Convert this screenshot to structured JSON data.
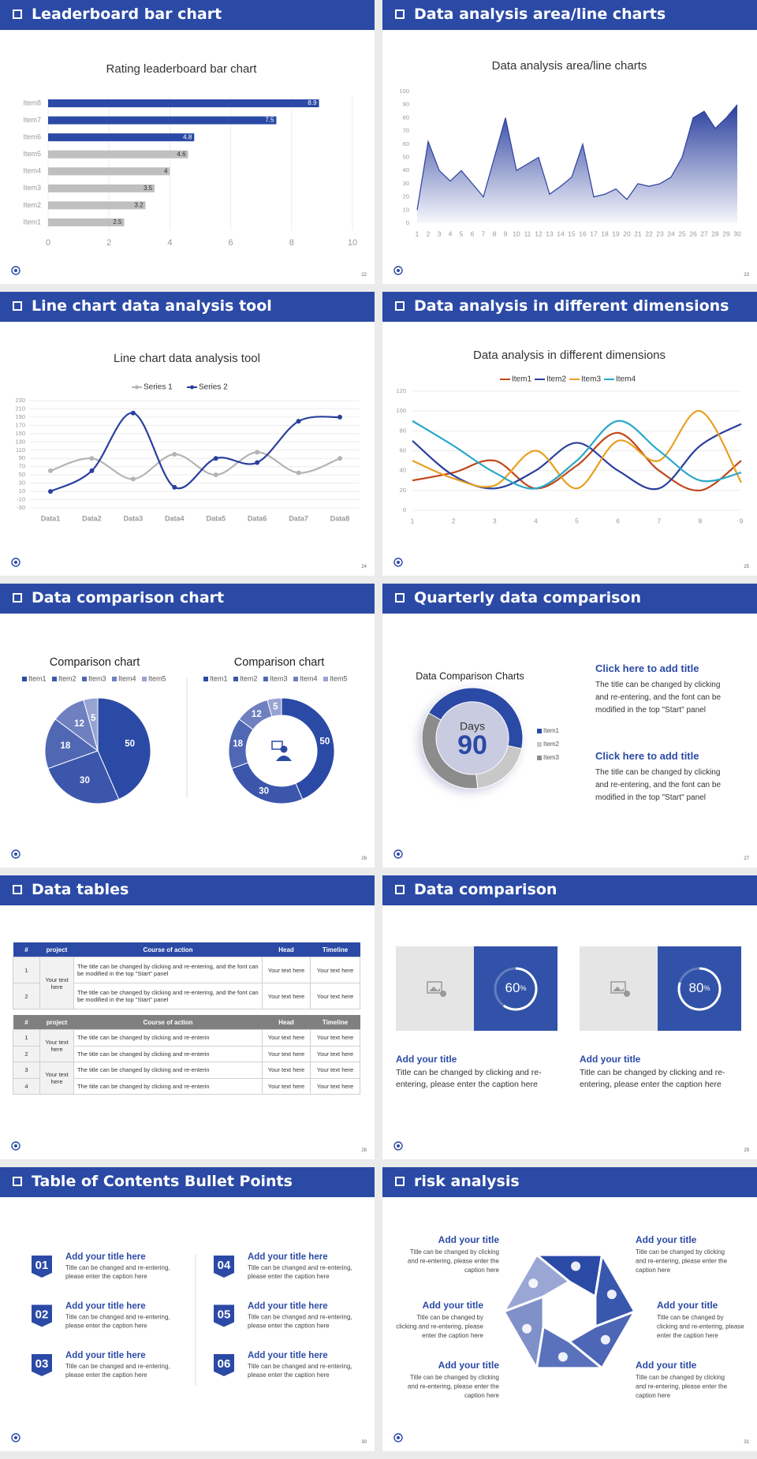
{
  "slides": [
    {
      "title": "Leaderboard bar chart",
      "page": 22
    },
    {
      "title": "Data analysis area/line charts",
      "page": 23
    },
    {
      "title": "Line chart data analysis tool",
      "page": 24
    },
    {
      "title": "Data analysis in different dimensions",
      "page": 25
    },
    {
      "title": "Data comparison chart",
      "page": 26
    },
    {
      "title": "Quarterly data comparison",
      "page": 27
    },
    {
      "title": "Data tables",
      "page": 28
    },
    {
      "title": "Data comparison",
      "page": 29
    },
    {
      "title": "Table of Contents Bullet Points",
      "page": 30
    },
    {
      "title": "risk analysis",
      "page": 31
    }
  ],
  "chart_data": [
    {
      "type": "bar",
      "title": "Rating leaderboard bar chart",
      "categories": [
        "Item1",
        "Item2",
        "Item3",
        "Item4",
        "Item5",
        "Item6",
        "Item7",
        "Item8"
      ],
      "values": [
        2.5,
        3.2,
        3.5,
        4,
        4.6,
        4.8,
        7.5,
        8.9
      ],
      "colors": [
        "#bfbfbf",
        "#bfbfbf",
        "#bfbfbf",
        "#bfbfbf",
        "#bfbfbf",
        "#2b4aa6",
        "#2b4aa6",
        "#2b4aa6"
      ],
      "xlim": [
        0,
        10
      ],
      "xticks": [
        0,
        2,
        4,
        6,
        8,
        10
      ],
      "grid": true
    },
    {
      "type": "area",
      "title": "Data analysis area/line charts",
      "categories": [
        "1",
        "2",
        "3",
        "4",
        "5",
        "6",
        "7",
        "8",
        "9",
        "10",
        "11",
        "12",
        "13",
        "14",
        "15",
        "16",
        "17",
        "18",
        "19",
        "20",
        "21",
        "22",
        "23",
        "24",
        "25",
        "26",
        "27",
        "28",
        "29",
        "30"
      ],
      "values": [
        10,
        62,
        40,
        32,
        40,
        30,
        20,
        50,
        80,
        40,
        45,
        50,
        22,
        28,
        35,
        60,
        20,
        22,
        26,
        18,
        30,
        28,
        30,
        35,
        50,
        80,
        85,
        72,
        80,
        90
      ],
      "color": "#2a3f9e",
      "ylim": [
        0,
        100
      ],
      "yticks": [
        0,
        10,
        20,
        30,
        40,
        50,
        60,
        70,
        80,
        90,
        100
      ]
    },
    {
      "type": "line",
      "title": "Line chart data analysis tool",
      "categories": [
        "Data1",
        "Data2",
        "Data3",
        "Data4",
        "Data5",
        "Data6",
        "Data7",
        "Data8"
      ],
      "series": [
        {
          "name": "Series 1",
          "color": "#b4b4b4",
          "values": [
            60,
            90,
            40,
            100,
            50,
            105,
            55,
            90
          ]
        },
        {
          "name": "Series 2",
          "color": "#2a3f9e",
          "values": [
            10,
            60,
            200,
            20,
            90,
            80,
            180,
            190
          ]
        }
      ],
      "ylim": [
        -30,
        230
      ],
      "yticks": [
        -30,
        -10,
        10,
        30,
        50,
        70,
        90,
        110,
        130,
        150,
        170,
        190,
        210,
        230
      ],
      "grid": true,
      "smooth": true,
      "markers": true
    },
    {
      "type": "line",
      "title": "Data analysis in different dimensions",
      "categories": [
        "1",
        "2",
        "3",
        "4",
        "5",
        "6",
        "7",
        "8",
        "9"
      ],
      "series": [
        {
          "name": "Item1",
          "color": "#c0461a",
          "values": [
            30,
            38,
            50,
            22,
            45,
            78,
            40,
            20,
            50
          ]
        },
        {
          "name": "Item2",
          "color": "#2a3f9e",
          "values": [
            70,
            35,
            22,
            40,
            68,
            40,
            22,
            65,
            87
          ]
        },
        {
          "name": "Item3",
          "color": "#e8a020",
          "values": [
            50,
            32,
            25,
            60,
            22,
            70,
            50,
            100,
            28
          ]
        },
        {
          "name": "Item4",
          "color": "#2aa8c8",
          "values": [
            90,
            65,
            38,
            22,
            50,
            90,
            60,
            30,
            38
          ]
        }
      ],
      "ylim": [
        0,
        120
      ],
      "yticks": [
        0,
        20,
        40,
        60,
        80,
        100,
        120
      ],
      "grid": true,
      "smooth": true
    },
    {
      "type": "pie",
      "title": "Comparison chart",
      "categories": [
        "Item1",
        "Item2",
        "Item3",
        "Item4",
        "Item5"
      ],
      "values": [
        50,
        30,
        18,
        12,
        5
      ],
      "colors": [
        "#2b4aa6",
        "#3c56ac",
        "#5067b4",
        "#6f80c0",
        "#97a3d2"
      ],
      "data_labels": true
    },
    {
      "type": "donut",
      "title": "Comparison chart",
      "categories": [
        "Item1",
        "Item2",
        "Item3",
        "Item4",
        "Item5"
      ],
      "values": [
        50,
        30,
        18,
        12,
        5
      ],
      "colors": [
        "#2b4aa6",
        "#3c56ac",
        "#5067b4",
        "#6f80c0",
        "#97a3d2"
      ],
      "data_labels": true
    },
    {
      "type": "donut",
      "title": "Data Comparison Charts",
      "categories": [
        "Item1",
        "Item2",
        "Item3"
      ],
      "values": [
        45,
        20,
        35
      ],
      "colors": [
        "#2b4aa6",
        "#c8c8c8",
        "#8c8c8c"
      ],
      "center_label": "Days",
      "center_value": 90
    }
  ],
  "quarterly": [
    {
      "title": "Click here to add title",
      "lines": [
        "The title can be changed by clicking",
        "and re-entering, and the font can be",
        "modified in the top \"Start\" panel"
      ]
    },
    {
      "title": "Click here to add title",
      "lines": [
        "The title can be changed by clicking",
        "and re-entering, and the font can be",
        "modified in the top \"Start\" panel"
      ]
    }
  ],
  "tables": [
    {
      "color": "#2b4aa6",
      "header": [
        "#",
        "project",
        "Course of action",
        "Head",
        "Timeline"
      ],
      "groups": [
        {
          "project": "Your text here",
          "rows": [
            {
              "num": 1,
              "action": "The title can be changed by clicking and re-entering, and the font can be modified in the top \"Start\" panel",
              "head": "Your text here",
              "timeline": "Your text here"
            },
            {
              "num": 2,
              "action": "The title can be changed by clicking and re-entering, and the font can be modified in the top \"Start\" panel",
              "head": "Your text here",
              "timeline": "Your text here"
            }
          ]
        }
      ]
    },
    {
      "color": "#808080",
      "header": [
        "#",
        "project",
        "Course of action",
        "Head",
        "Timeline"
      ],
      "groups": [
        {
          "project": "Your text here",
          "rows": [
            {
              "num": 1,
              "action": "The title can be changed by clicking and re-enterin",
              "head": "Your text here",
              "timeline": "Your text here"
            },
            {
              "num": 2,
              "action": "The title can be changed by clicking and re-enterin",
              "head": "Your text here",
              "timeline": "Your text here"
            }
          ]
        },
        {
          "project": "Your text here",
          "rows": [
            {
              "num": 3,
              "action": "The title can be changed by clicking and re-enterin",
              "head": "Your text here",
              "timeline": "Your text here"
            },
            {
              "num": 4,
              "action": "The title can be changed by clicking and re-enterin",
              "head": "Your text here",
              "timeline": "Your text here"
            }
          ]
        }
      ]
    }
  ],
  "progress": [
    {
      "value": 60,
      "unit": "%",
      "title": "Add your title",
      "lines": [
        "Title can be changed by clicking and re-",
        "entering, please enter the caption here"
      ]
    },
    {
      "value": 80,
      "unit": "%",
      "title": "Add your title",
      "lines": [
        "Title can be changed by clicking and re-",
        "entering, please enter the caption here"
      ]
    }
  ],
  "toc": [
    {
      "number": "01",
      "title": "Add your title here",
      "lines": [
        "Title can be changed and re-entering,",
        "please enter the caption here"
      ]
    },
    {
      "number": "02",
      "title": "Add your title here",
      "lines": [
        "Title can be changed and re-entering,",
        "please enter the caption here"
      ]
    },
    {
      "number": "03",
      "title": "Add your title here",
      "lines": [
        "Title can be changed and re-entering,",
        "please enter the caption here"
      ]
    },
    {
      "number": "04",
      "title": "Add your title here",
      "lines": [
        "Title can be changed and re-entering,",
        "please enter the caption here"
      ]
    },
    {
      "number": "05",
      "title": "Add your title here",
      "lines": [
        "Title can be changed and re-entering,",
        "please enter the caption here"
      ]
    },
    {
      "number": "06",
      "title": "Add your title here",
      "lines": [
        "Title can be changed and re-entering,",
        "please enter the caption here"
      ]
    }
  ],
  "risk": [
    {
      "title": "Add your title",
      "lines": [
        "Title can be changed by clicking",
        "and re-entering, please enter the",
        "caption here"
      ]
    },
    {
      "title": "Add your title",
      "lines": [
        "Title can be changed by",
        "clicking and re-entering, please",
        "enter the caption here"
      ]
    },
    {
      "title": "Add your title",
      "lines": [
        "Title can be changed by clicking",
        "and re-entering, please enter the",
        "caption here"
      ]
    },
    {
      "title": "Add your title",
      "lines": [
        "Title can be changed by clicking",
        "and re-entering, please enter the",
        "caption here"
      ]
    },
    {
      "title": "Add your title",
      "lines": [
        "Title can be changed by",
        "clicking and re-entering, please",
        "enter the caption here"
      ]
    },
    {
      "title": "Add your title",
      "lines": [
        "Title can be changed by clicking",
        "and re-entering, please enter the",
        "caption here"
      ]
    }
  ]
}
